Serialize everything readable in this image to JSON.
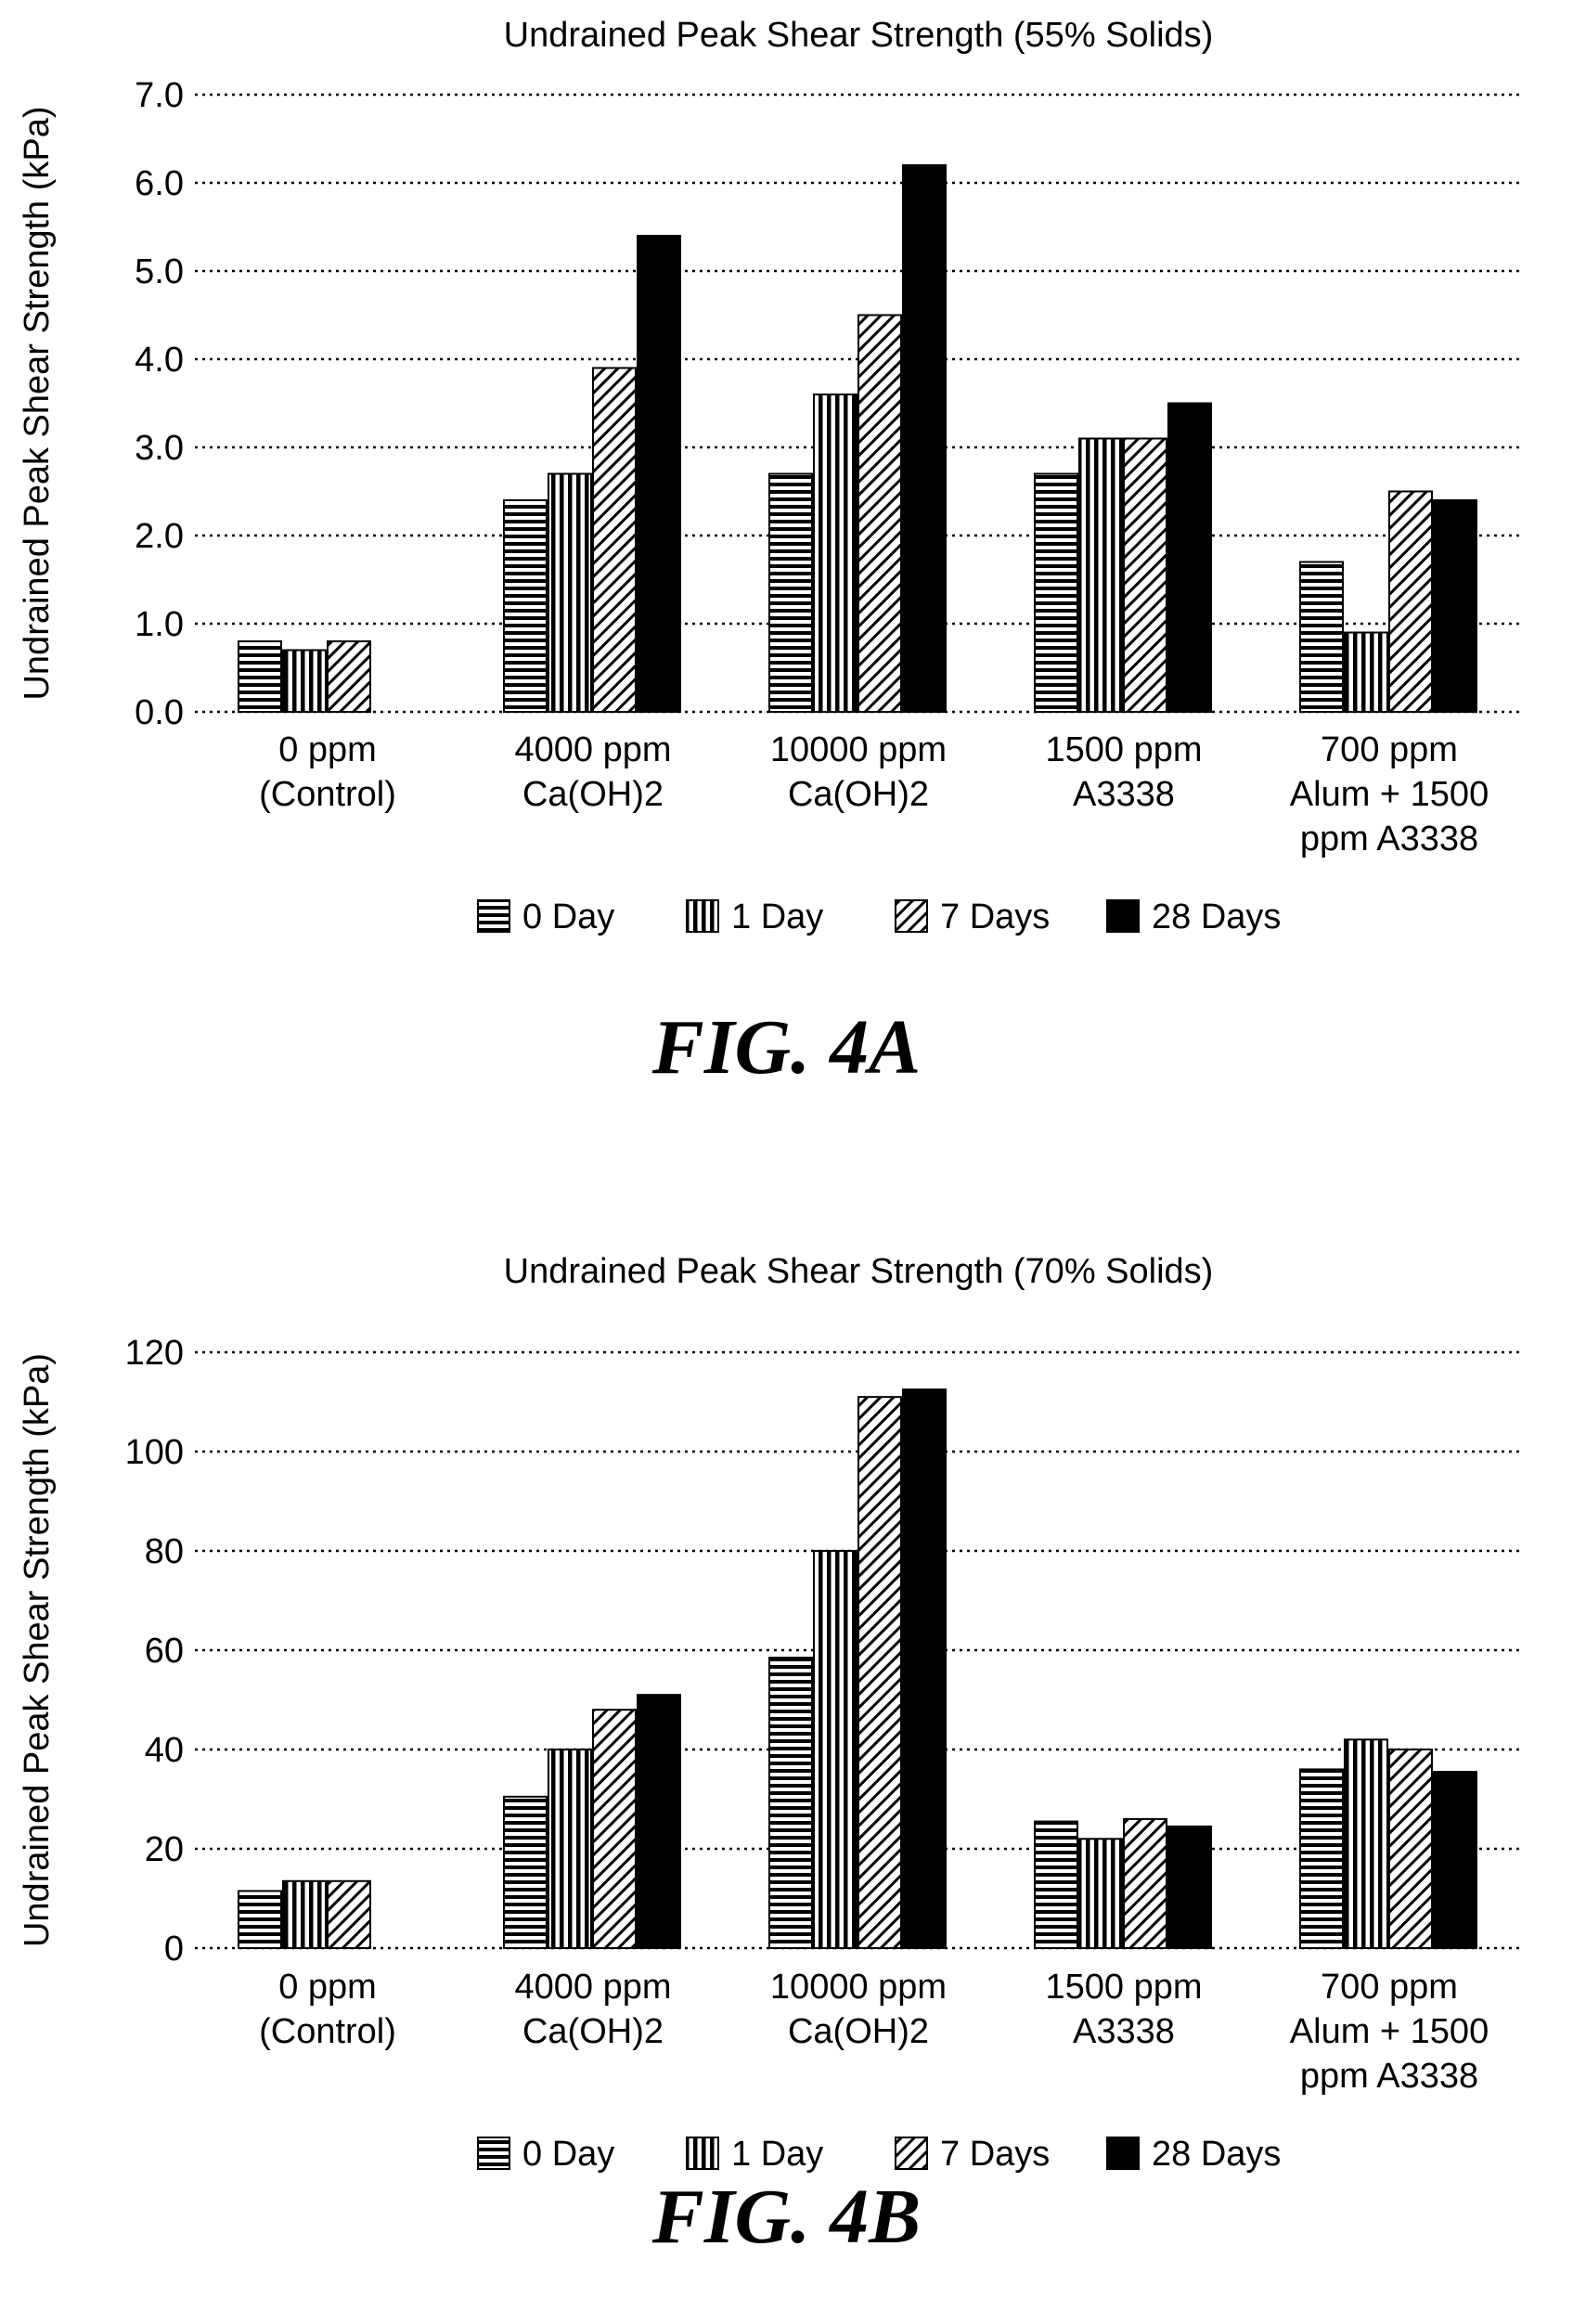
{
  "chart_data": [
    {
      "type": "bar",
      "title": "Undrained Peak Shear Strength (55% Solids)",
      "ylabel": "Undrained Peak Shear Strength (kPa)",
      "xlabel": "",
      "ylim": [
        0,
        7
      ],
      "yticks": [
        "0.0",
        "1.0",
        "2.0",
        "3.0",
        "4.0",
        "5.0",
        "6.0",
        "7.0"
      ],
      "ytick_values": [
        0,
        1,
        2,
        3,
        4,
        5,
        6,
        7
      ],
      "grid": "horizontal dotted",
      "legend": "bottom",
      "categories": [
        [
          "0 ppm",
          "(Control)"
        ],
        [
          "4000 ppm",
          "Ca(OH)2"
        ],
        [
          "10000 ppm",
          "Ca(OH)2"
        ],
        [
          "1500 ppm",
          "A3338"
        ],
        [
          "700 ppm",
          "Alum + 1500",
          "ppm A3338"
        ]
      ],
      "series": [
        {
          "name": "0 Day",
          "pattern": "horizontal-stripes",
          "values": [
            0.8,
            2.4,
            2.7,
            2.7,
            1.7
          ]
        },
        {
          "name": "1 Day",
          "pattern": "vertical-stripes",
          "values": [
            0.7,
            2.7,
            3.6,
            3.1,
            0.9
          ]
        },
        {
          "name": "7 Days",
          "pattern": "diagonal-hatch",
          "values": [
            0.8,
            3.9,
            4.5,
            3.1,
            2.5
          ]
        },
        {
          "name": "28 Days",
          "pattern": "solid-black",
          "values": [
            null,
            5.4,
            6.2,
            3.5,
            2.4
          ]
        }
      ],
      "caption": "FIG. 4A"
    },
    {
      "type": "bar",
      "title": "Undrained Peak Shear Strength (70% Solids)",
      "ylabel": "Undrained Peak Shear Strength (kPa)",
      "xlabel": "",
      "ylim": [
        0,
        120
      ],
      "yticks": [
        "0",
        "20",
        "40",
        "60",
        "80",
        "100",
        "120"
      ],
      "ytick_values": [
        0,
        20,
        40,
        60,
        80,
        100,
        120
      ],
      "grid": "horizontal dotted",
      "legend": "bottom",
      "categories": [
        [
          "0 ppm",
          "(Control)"
        ],
        [
          "4000 ppm",
          "Ca(OH)2"
        ],
        [
          "10000 ppm",
          "Ca(OH)2"
        ],
        [
          "1500 ppm",
          "A3338"
        ],
        [
          "700 ppm",
          "Alum + 1500",
          "ppm A3338"
        ]
      ],
      "series": [
        {
          "name": "0 Day",
          "pattern": "horizontal-stripes",
          "values": [
            11.5,
            30.5,
            58.5,
            25.5,
            36
          ]
        },
        {
          "name": "1 Day",
          "pattern": "vertical-stripes",
          "values": [
            13.5,
            40,
            80,
            22,
            42
          ]
        },
        {
          "name": "7 Days",
          "pattern": "diagonal-hatch",
          "values": [
            13.5,
            48,
            111,
            26,
            40
          ]
        },
        {
          "name": "28 Days",
          "pattern": "solid-black",
          "values": [
            null,
            51,
            112.5,
            24.5,
            35.5
          ]
        }
      ],
      "caption": "FIG. 4B"
    }
  ]
}
